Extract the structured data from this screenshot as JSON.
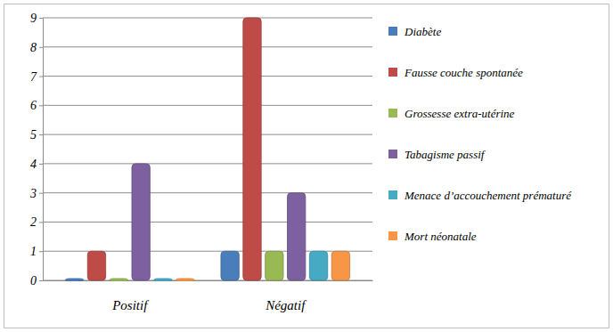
{
  "chart_data": {
    "type": "bar",
    "categories": [
      "Positif",
      "Négatif"
    ],
    "series": [
      {
        "name": "Diabète",
        "color": "#4a7ebb",
        "values": [
          0,
          1
        ]
      },
      {
        "name": "Fausse couche spontanée",
        "color": "#be4b48",
        "values": [
          1,
          9
        ]
      },
      {
        "name": "Grossesse extra-utérine",
        "color": "#98b954",
        "values": [
          0,
          1
        ]
      },
      {
        "name": "Tabagisme passif",
        "color": "#7d60a0",
        "values": [
          4,
          3
        ]
      },
      {
        "name": "Menace d’accouchement prématuré",
        "color": "#46aac5",
        "values": [
          0,
          1
        ]
      },
      {
        "name": "Mort néonatale",
        "color": "#f79646",
        "values": [
          0,
          1
        ]
      }
    ],
    "ylim": [
      0,
      9
    ],
    "yticks": [
      0,
      1,
      2,
      3,
      4,
      5,
      6,
      7,
      8,
      9
    ],
    "grid": true,
    "legend": "right"
  }
}
